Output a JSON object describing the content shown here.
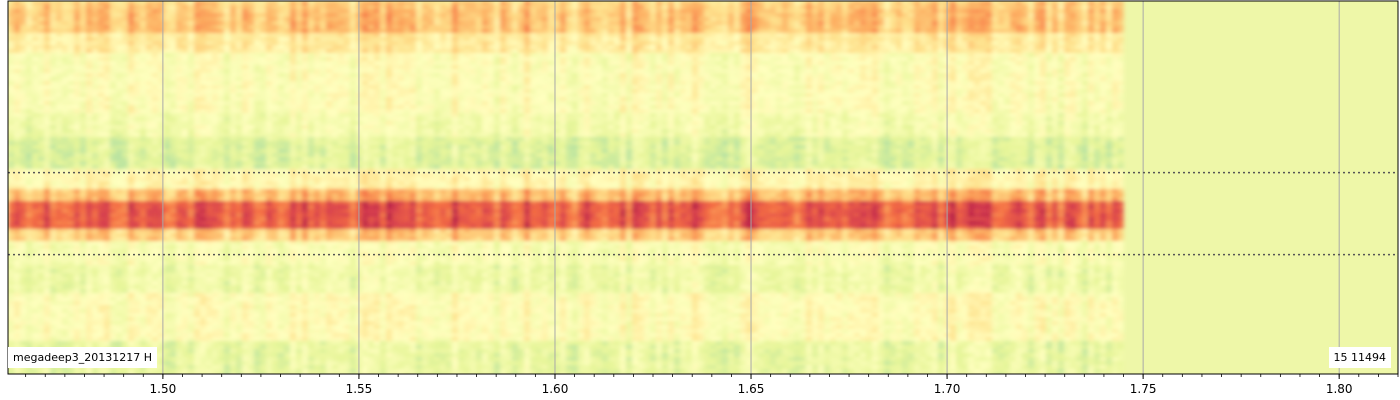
{
  "chart_data": {
    "type": "heatmap",
    "title": "",
    "xlabel": "",
    "ylabel": "",
    "xlim": [
      1.4605,
      1.815
    ],
    "data_x_end": 1.745,
    "x_ticks": [
      1.5,
      1.55,
      1.6,
      1.65,
      1.7,
      1.75,
      1.8
    ],
    "x_tick_labels": [
      "1.50",
      "1.55",
      "1.60",
      "1.65",
      "1.70",
      "1.75",
      "1.80"
    ],
    "vertical_grid": true,
    "aperture_lines_fraction_from_top": [
      0.46,
      0.68
    ],
    "colormap": [
      "#9e0142",
      "#d53e4f",
      "#f46d43",
      "#fdae61",
      "#fee08b",
      "#ffffbf",
      "#e6f598",
      "#abdda4",
      "#66c2a5",
      "#3288bd"
    ],
    "fill_color_beyond_data": "#eef7a8",
    "profile_rows": [
      {
        "from": 0.0,
        "to": 0.02,
        "level": 0.4
      },
      {
        "from": 0.02,
        "to": 0.08,
        "level": 0.38
      },
      {
        "from": 0.08,
        "to": 0.14,
        "level": 0.48
      },
      {
        "from": 0.14,
        "to": 0.3,
        "level": 0.56
      },
      {
        "from": 0.3,
        "to": 0.36,
        "level": 0.6
      },
      {
        "from": 0.36,
        "to": 0.45,
        "level": 0.67
      },
      {
        "from": 0.45,
        "to": 0.5,
        "level": 0.52
      },
      {
        "from": 0.5,
        "to": 0.53,
        "level": 0.36
      },
      {
        "from": 0.53,
        "to": 0.61,
        "level": 0.18
      },
      {
        "from": 0.61,
        "to": 0.64,
        "level": 0.4
      },
      {
        "from": 0.64,
        "to": 0.7,
        "level": 0.58
      },
      {
        "from": 0.7,
        "to": 0.78,
        "level": 0.62
      },
      {
        "from": 0.78,
        "to": 0.9,
        "level": 0.55
      },
      {
        "from": 0.9,
        "to": 1.0,
        "level": 0.64
      }
    ],
    "label_left": "megadeep3_20131217  H",
    "label_right": "15  11494"
  }
}
